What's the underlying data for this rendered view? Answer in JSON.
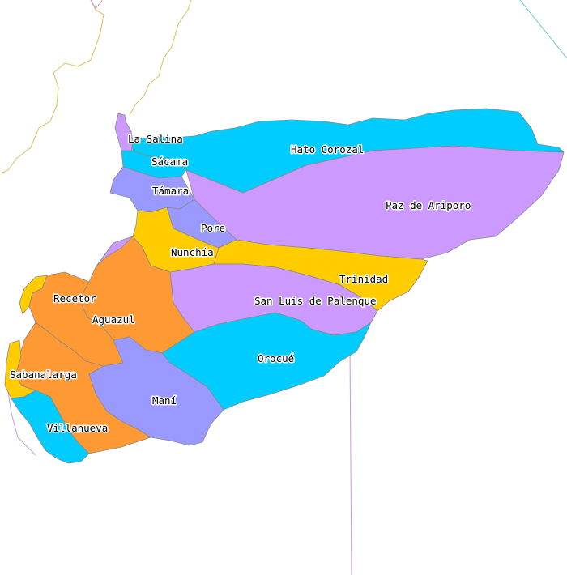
{
  "map": {
    "colors": {
      "cyan": "#00ccff",
      "lavender": "#cc99ff",
      "periwinkle": "#9999ff",
      "yellow": "#ffcc00",
      "orange": "#ff9933"
    },
    "municipalities": [
      {
        "id": "la-salina",
        "name": "La Salina",
        "color": "lavender"
      },
      {
        "id": "sacama",
        "name": "Sácama",
        "color": "cyan"
      },
      {
        "id": "hato-corozal",
        "name": "Hato Corozal",
        "color": "cyan"
      },
      {
        "id": "tamara",
        "name": "Támara",
        "color": "periwinkle"
      },
      {
        "id": "paz-de-ariporo",
        "name": "Paz de Ariporo",
        "color": "lavender"
      },
      {
        "id": "pore",
        "name": "Pore",
        "color": "periwinkle"
      },
      {
        "id": "nunchia",
        "name": "Nunchía",
        "color": "yellow"
      },
      {
        "id": "trinidad",
        "name": "Trinidad",
        "color": "yellow"
      },
      {
        "id": "recetor",
        "name": "Recetor",
        "color": "orange"
      },
      {
        "id": "aguazul",
        "name": "Aguazul",
        "color": "orange"
      },
      {
        "id": "san-luis-de-palenque",
        "name": "San Luis de Palenque",
        "color": "lavender"
      },
      {
        "id": "orocue",
        "name": "Orocué",
        "color": "cyan"
      },
      {
        "id": "sabanalarga",
        "name": "Sabanalarga",
        "color": "yellow"
      },
      {
        "id": "mani",
        "name": "Maní",
        "color": "periwinkle"
      },
      {
        "id": "villanueva",
        "name": "Villanueva",
        "color": "cyan"
      }
    ]
  }
}
